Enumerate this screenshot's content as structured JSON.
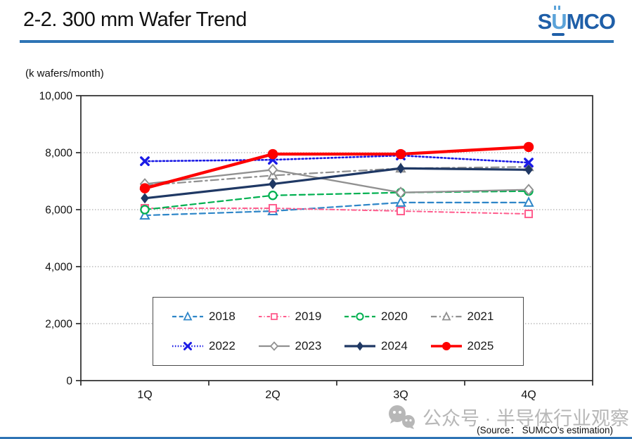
{
  "header": {
    "title": "2-2. 300 mm Wafer Trend",
    "logo": {
      "s": "S",
      "u": "U",
      "mco": "MCO"
    }
  },
  "units_label": "(k wafers/month)",
  "source_note": "(Source： SUMCO's estimation)",
  "watermark": {
    "text": "公众号 · 半导体行业观察"
  },
  "colors": {
    "accent_rule": "#2E74B5",
    "logo_dark": "#1F5FA8",
    "logo_light": "#5BA3D9",
    "axis": "#2b2b2b",
    "gridline": "#999999"
  },
  "chart_data": {
    "type": "line",
    "title": "300 mm Wafer Trend",
    "xlabel": "",
    "ylabel": "(k wafers/month)",
    "x_categories": [
      "1Q",
      "2Q",
      "3Q",
      "4Q"
    ],
    "ylim": [
      0,
      10000
    ],
    "ytick_interval": 2000,
    "ytick_labels": [
      "0",
      "2,000",
      "4,000",
      "6,000",
      "8,000",
      "10,000"
    ],
    "grid": "horizontal-dotted",
    "legend_position": "inside-bottom",
    "series": [
      {
        "name": "2018",
        "color": "#2E86C8",
        "line": "dashed",
        "width": 2.2,
        "marker": "triangle-open",
        "values": [
          5800,
          5950,
          6250,
          6250
        ]
      },
      {
        "name": "2019",
        "color": "#FF5C8D",
        "line": "dash-dot-sq",
        "width": 2.0,
        "marker": "square-open",
        "values": [
          6050,
          6050,
          5950,
          5850
        ]
      },
      {
        "name": "2020",
        "color": "#00B050",
        "line": "dashed",
        "width": 2.2,
        "marker": "circle-open",
        "values": [
          6000,
          6500,
          6600,
          6650
        ]
      },
      {
        "name": "2021",
        "color": "#909090",
        "line": "dash-dot",
        "width": 2.2,
        "marker": "triangle-open",
        "values": [
          6850,
          7200,
          7450,
          7500
        ]
      },
      {
        "name": "2022",
        "color": "#1A1AE6",
        "line": "dotted",
        "width": 2.6,
        "marker": "x",
        "values": [
          7700,
          7750,
          7900,
          7650
        ]
      },
      {
        "name": "2023",
        "color": "#909090",
        "line": "solid",
        "width": 2.3,
        "marker": "diamond-open",
        "values": [
          6900,
          7400,
          6600,
          6700
        ]
      },
      {
        "name": "2024",
        "color": "#1F3864",
        "line": "solid",
        "width": 3.2,
        "marker": "diamond-filled",
        "values": [
          6400,
          6900,
          7450,
          7400
        ]
      },
      {
        "name": "2025",
        "color": "#FE0000",
        "line": "solid",
        "width": 4.3,
        "marker": "circle-filled",
        "values": [
          6750,
          7950,
          7950,
          8200
        ]
      }
    ]
  }
}
